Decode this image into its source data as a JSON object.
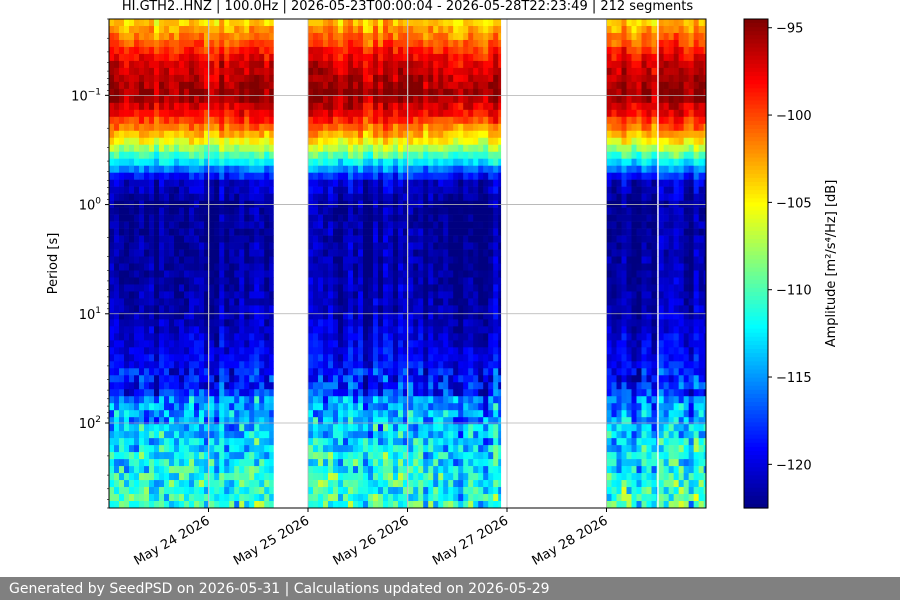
{
  "chart_data": {
    "type": "heatmap",
    "title": "HI.GTH2..HNZ | 100.0Hz | 2026-05-23T00:00:04 - 2026-05-28T22:23:49 | 212 segments",
    "ylabel": "Period [s]",
    "colorbar_label": "Amplitude [m²/s⁴/Hz] [dB]",
    "y_scale": "log",
    "y_inverted": true,
    "ylim_seconds": [
      0.02,
      600
    ],
    "y_ticks": [
      {
        "value": 0.1,
        "base": "10",
        "exp": "−1"
      },
      {
        "value": 1,
        "base": "10",
        "exp": "0"
      },
      {
        "value": 10,
        "base": "10",
        "exp": "1"
      },
      {
        "value": 100,
        "base": "10",
        "exp": "2"
      }
    ],
    "x_ticks": [
      "May 24 2026",
      "May 25 2026",
      "May 26 2026",
      "May 27 2026",
      "May 28 2026"
    ],
    "xlim_days": [
      "2026-05-23T00:00",
      "2026-05-29T00:00"
    ],
    "colorbar_ticks": [
      -95,
      -100,
      -105,
      -110,
      -115,
      -120
    ],
    "colorbar_range": [
      -122.5,
      -94.5
    ],
    "colormap": "jet",
    "grid": true,
    "data_blocks": [
      {
        "start": "2026-05-23T00:00",
        "end": "2026-05-23T23:50"
      },
      {
        "start": "2026-05-24T00:10",
        "end": "2026-05-24T15:40"
      },
      {
        "start": "2026-05-25T00:00",
        "end": "2026-05-25T23:50"
      },
      {
        "start": "2026-05-26T00:10",
        "end": "2026-05-26T22:30"
      },
      {
        "start": "2026-05-28T00:00",
        "end": "2026-05-28T12:10"
      },
      {
        "start": "2026-05-28T12:35",
        "end": "2026-05-28T23:59"
      }
    ],
    "median_profile_db": [
      {
        "period_s": 0.02,
        "db": -104
      },
      {
        "period_s": 0.05,
        "db": -97
      },
      {
        "period_s": 0.1,
        "db": -95
      },
      {
        "period_s": 0.15,
        "db": -98
      },
      {
        "period_s": 0.25,
        "db": -104
      },
      {
        "period_s": 0.4,
        "db": -112
      },
      {
        "period_s": 0.6,
        "db": -120
      },
      {
        "period_s": 1,
        "db": -122
      },
      {
        "period_s": 10,
        "db": -121
      },
      {
        "period_s": 50,
        "db": -118
      },
      {
        "period_s": 150,
        "db": -115
      },
      {
        "period_s": 400,
        "db": -113
      }
    ]
  },
  "footer": {
    "text": "Generated by SeedPSD on 2026-05-31 | Calculations updated on 2026-05-29"
  }
}
